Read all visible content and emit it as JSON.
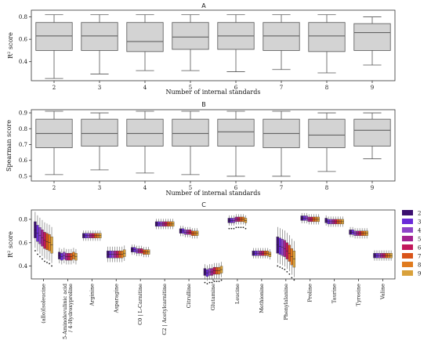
{
  "chart_data": [
    {
      "panel": "A",
      "type": "box",
      "xlabel": "Number of internal standards",
      "ylabel": "R² score",
      "yticks": [
        0.4,
        0.6,
        0.8
      ],
      "ylim": [
        0.23,
        0.86
      ],
      "boxes": [
        {
          "category": "2",
          "min": 0.25,
          "q1": 0.5,
          "median": 0.63,
          "q3": 0.75,
          "max": 0.82
        },
        {
          "category": "3",
          "min": 0.29,
          "q1": 0.5,
          "median": 0.63,
          "q3": 0.75,
          "max": 0.82
        },
        {
          "category": "4",
          "min": 0.32,
          "q1": 0.49,
          "median": 0.58,
          "q3": 0.75,
          "max": 0.82
        },
        {
          "category": "5",
          "min": 0.32,
          "q1": 0.51,
          "median": 0.62,
          "q3": 0.75,
          "max": 0.82
        },
        {
          "category": "6",
          "min": 0.31,
          "q1": 0.51,
          "median": 0.63,
          "q3": 0.75,
          "max": 0.82
        },
        {
          "category": "7",
          "min": 0.33,
          "q1": 0.5,
          "median": 0.63,
          "q3": 0.75,
          "max": 0.82
        },
        {
          "category": "8",
          "min": 0.3,
          "q1": 0.49,
          "median": 0.63,
          "q3": 0.75,
          "max": 0.82
        },
        {
          "category": "9",
          "min": 0.37,
          "q1": 0.5,
          "median": 0.66,
          "q3": 0.74,
          "max": 0.8
        }
      ]
    },
    {
      "panel": "B",
      "type": "box",
      "xlabel": "Number of internal standards",
      "ylabel": "Spearman score",
      "yticks": [
        0.5,
        0.6,
        0.7,
        0.8,
        0.9
      ],
      "ylim": [
        0.47,
        0.92
      ],
      "boxes": [
        {
          "category": "2",
          "min": 0.51,
          "q1": 0.68,
          "median": 0.77,
          "q3": 0.86,
          "max": 0.91
        },
        {
          "category": "3",
          "min": 0.54,
          "q1": 0.69,
          "median": 0.77,
          "q3": 0.86,
          "max": 0.9
        },
        {
          "category": "4",
          "min": 0.52,
          "q1": 0.69,
          "median": 0.77,
          "q3": 0.86,
          "max": 0.91
        },
        {
          "category": "5",
          "min": 0.51,
          "q1": 0.69,
          "median": 0.77,
          "q3": 0.86,
          "max": 0.91
        },
        {
          "category": "6",
          "min": 0.5,
          "q1": 0.69,
          "median": 0.78,
          "q3": 0.86,
          "max": 0.91
        },
        {
          "category": "7",
          "min": 0.5,
          "q1": 0.68,
          "median": 0.77,
          "q3": 0.86,
          "max": 0.91
        },
        {
          "category": "8",
          "min": 0.53,
          "q1": 0.68,
          "median": 0.76,
          "q3": 0.86,
          "max": 0.9
        },
        {
          "category": "9",
          "min": 0.61,
          "q1": 0.69,
          "median": 0.79,
          "q3": 0.86,
          "max": 0.9
        }
      ]
    },
    {
      "panel": "C",
      "type": "box",
      "ylabel": "R² score",
      "yticks": [
        0.4,
        0.6,
        0.8
      ],
      "ylim": [
        0.29,
        0.88
      ],
      "categories": [
        "(allo)Isoleucine",
        "5-Aminolevulinic acid / 4-Hydroxyproline",
        "Arginine",
        "Asparagine",
        "C0 | L-Carnitine",
        "C2 | Acetylcarnitine",
        "Citrulline",
        "Glutamine",
        "Leucine",
        "Methionine",
        "Phenylalanine",
        "Proline",
        "Taurine",
        "Tyrosine",
        "Valine"
      ],
      "legend": {
        "placement": "right",
        "entries": [
          "2",
          "3",
          "4",
          "5",
          "6",
          "7",
          "8",
          "9"
        ],
        "colors": [
          "#3b0f70",
          "#6a2bd9",
          "#8e44c8",
          "#a3238f",
          "#c2185b",
          "#d9541a",
          "#e07b1e",
          "#d9a13b"
        ]
      },
      "medians": [
        [
          0.71,
          0.68,
          0.66,
          0.64,
          0.62,
          0.61,
          0.6,
          0.58
        ],
        [
          0.49,
          0.48,
          0.49,
          0.48,
          0.48,
          0.48,
          0.49,
          0.48
        ],
        [
          0.66,
          0.66,
          0.66,
          0.66,
          0.66,
          0.66,
          0.66,
          0.66
        ],
        [
          0.5,
          0.5,
          0.5,
          0.5,
          0.5,
          0.5,
          0.5,
          0.51
        ],
        [
          0.54,
          0.54,
          0.53,
          0.53,
          0.53,
          0.52,
          0.52,
          0.52
        ],
        [
          0.76,
          0.76,
          0.76,
          0.76,
          0.76,
          0.76,
          0.76,
          0.76
        ],
        [
          0.7,
          0.7,
          0.69,
          0.69,
          0.69,
          0.68,
          0.68,
          0.68
        ],
        [
          0.35,
          0.34,
          0.35,
          0.35,
          0.36,
          0.36,
          0.36,
          0.37
        ],
        [
          0.79,
          0.79,
          0.79,
          0.8,
          0.8,
          0.8,
          0.8,
          0.79
        ],
        [
          0.51,
          0.51,
          0.51,
          0.51,
          0.51,
          0.51,
          0.51,
          0.5
        ],
        [
          0.58,
          0.57,
          0.56,
          0.55,
          0.53,
          0.51,
          0.48,
          0.46
        ],
        [
          0.81,
          0.81,
          0.81,
          0.8,
          0.8,
          0.8,
          0.8,
          0.8
        ],
        [
          0.79,
          0.78,
          0.78,
          0.78,
          0.78,
          0.78,
          0.78,
          0.78
        ],
        [
          0.69,
          0.69,
          0.68,
          0.68,
          0.68,
          0.68,
          0.68,
          0.68
        ],
        [
          0.49,
          0.49,
          0.49,
          0.49,
          0.49,
          0.49,
          0.49,
          0.49
        ]
      ]
    }
  ]
}
